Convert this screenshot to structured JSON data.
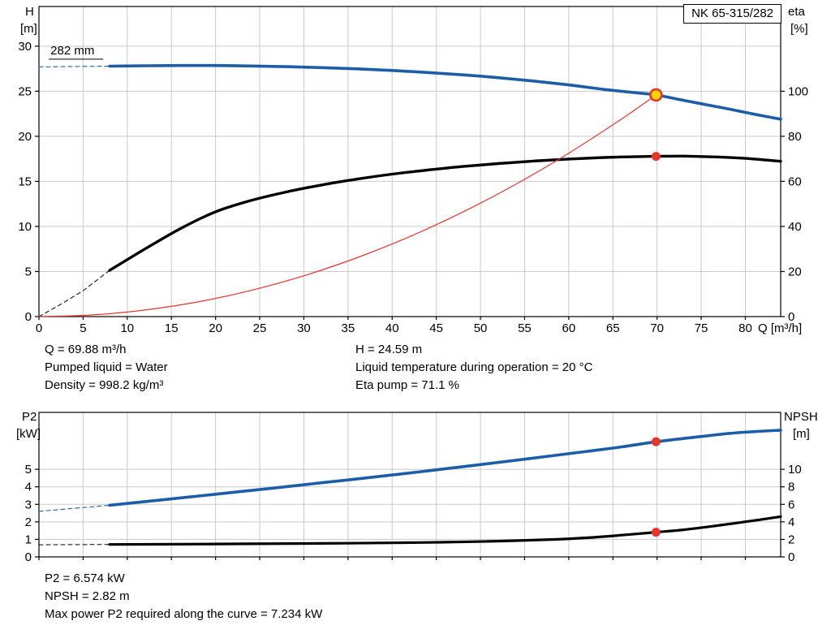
{
  "model_box": "NK 65-315/282",
  "info_top": {
    "q": "Q = 69.88 m³/h",
    "pumped_liquid": "Pumped liquid = Water",
    "density": "Density = 998.2 kg/m³",
    "h": "H = 24.59 m",
    "temperature": "Liquid temperature during operation = 20 °C",
    "eta": "Eta pump = 71.1 %"
  },
  "info_bottom": {
    "p2": "P2 = 6.574 kW",
    "npsh": "NPSH = 2.82 m",
    "max_power": "Max power P2 required along the curve = 7.234 kW"
  },
  "colors": {
    "curve_blue": "#1c5da8",
    "curve_black": "#000000",
    "system_red": "#e6352b",
    "duty_yellow": "#ffd400",
    "grid_gray": "#c9c9c9"
  },
  "chart_data": [
    {
      "type": "line",
      "name": "QH and efficiency curves",
      "x": {
        "label": "Q [m³/h]",
        "min": 0,
        "max": 84,
        "ticks": [
          0,
          5,
          10,
          15,
          20,
          25,
          30,
          35,
          40,
          45,
          50,
          55,
          60,
          65,
          70,
          75,
          80
        ]
      },
      "y_left": {
        "title": "H",
        "unit": "[m]",
        "min": 0,
        "max": 34.4,
        "ticks": [
          0,
          5,
          10,
          15,
          20,
          25,
          30
        ]
      },
      "y_right": {
        "title": "eta",
        "unit": "[%]",
        "min": 0,
        "max": 137.6,
        "ticks": [
          0,
          20,
          40,
          60,
          80,
          100
        ]
      },
      "series": [
        {
          "name": "head-curve-282mm",
          "axis": "left",
          "color": "#1c5da8",
          "width": 3.6,
          "smooth": true,
          "points": [
            [
              8,
              27.78
            ],
            [
              12,
              27.83
            ],
            [
              16,
              27.85
            ],
            [
              20,
              27.85
            ],
            [
              24,
              27.8
            ],
            [
              28,
              27.73
            ],
            [
              32,
              27.62
            ],
            [
              36,
              27.48
            ],
            [
              40,
              27.3
            ],
            [
              44,
              27.08
            ],
            [
              48,
              26.82
            ],
            [
              52,
              26.5
            ],
            [
              56,
              26.13
            ],
            [
              60,
              25.7
            ],
            [
              64,
              25.2
            ],
            [
              68,
              24.79
            ],
            [
              69.88,
              24.59
            ],
            [
              74,
              23.8
            ],
            [
              78,
              23.05
            ],
            [
              81,
              22.45
            ],
            [
              84,
              21.9
            ]
          ]
        },
        {
          "name": "head-curve-extension",
          "axis": "left",
          "color": "#1c5da8",
          "width": 1.1,
          "dash": "5 4",
          "points": [
            [
              0,
              27.7
            ],
            [
              8,
              27.78
            ]
          ]
        },
        {
          "name": "efficiency-curve",
          "axis": "right",
          "color": "#000000",
          "width": 3.4,
          "smooth": true,
          "points": [
            [
              8,
              20.5
            ],
            [
              12,
              30
            ],
            [
              16,
              39
            ],
            [
              20,
              46.5
            ],
            [
              24,
              51.5
            ],
            [
              28,
              55.3
            ],
            [
              32,
              58.4
            ],
            [
              36,
              61
            ],
            [
              40,
              63.2
            ],
            [
              44,
              65
            ],
            [
              48,
              66.6
            ],
            [
              52,
              67.9
            ],
            [
              56,
              69
            ],
            [
              60,
              69.9
            ],
            [
              64,
              70.6
            ],
            [
              68,
              71.0
            ],
            [
              69.88,
              71.1
            ],
            [
              73,
              71.2
            ],
            [
              77,
              70.8
            ],
            [
              80,
              70.2
            ],
            [
              84,
              68.9
            ]
          ]
        },
        {
          "name": "efficiency-curve-extension",
          "axis": "right",
          "color": "#000000",
          "width": 1,
          "dash": "5 4",
          "points": [
            [
              0,
              0
            ],
            [
              2.5,
              5.5
            ],
            [
              5,
              11.5
            ],
            [
              8,
              20.5
            ]
          ]
        },
        {
          "name": "system-curve",
          "axis": "left",
          "color": "#e6352b",
          "width": 1.2,
          "smooth": true,
          "points": [
            [
              0,
              0
            ],
            [
              6,
              0.18
            ],
            [
              12,
              0.73
            ],
            [
              18,
              1.63
            ],
            [
              24,
              2.9
            ],
            [
              30,
              4.53
            ],
            [
              36,
              6.53
            ],
            [
              42,
              8.88
            ],
            [
              48,
              11.6
            ],
            [
              54,
              14.68
            ],
            [
              60,
              18.13
            ],
            [
              66,
              21.93
            ],
            [
              69.88,
              24.59
            ]
          ]
        }
      ],
      "markers": [
        {
          "name": "duty-point",
          "x": 69.88,
          "y": 24.59,
          "axis": "left",
          "r": 7,
          "fill": "#ffd400",
          "stroke": "#e6352b",
          "stroke_width": 2.6
        },
        {
          "name": "efficiency-duty-point",
          "x": 69.88,
          "y": 71.1,
          "axis": "right",
          "r": 5.5,
          "fill": "#e6352b"
        }
      ],
      "annotation": {
        "label": "282 mm",
        "x": 1.3,
        "y": 29.1
      }
    },
    {
      "type": "line",
      "name": "Power and NPSH curves",
      "x": {
        "label": "",
        "min": 0,
        "max": 84,
        "ticks": [
          0,
          5,
          10,
          15,
          20,
          25,
          30,
          35,
          40,
          45,
          50,
          55,
          60,
          65,
          70,
          75,
          80
        ]
      },
      "y_left": {
        "title": "P2",
        "unit": "[kW]",
        "min": 0,
        "max": 8.25,
        "ticks": [
          0,
          1,
          2,
          3,
          4,
          5
        ]
      },
      "y_right": {
        "title": "NPSH",
        "unit": "[m]",
        "min": 0,
        "max": 16.5,
        "ticks": [
          0,
          2,
          4,
          6,
          8,
          10
        ]
      },
      "series": [
        {
          "name": "p2-curve",
          "axis": "left",
          "color": "#1c5da8",
          "width": 3.6,
          "smooth": true,
          "points": [
            [
              8,
              2.95
            ],
            [
              14,
              3.26
            ],
            [
              20,
              3.58
            ],
            [
              26,
              3.9
            ],
            [
              32,
              4.23
            ],
            [
              38,
              4.56
            ],
            [
              44,
              4.91
            ],
            [
              50,
              5.27
            ],
            [
              56,
              5.64
            ],
            [
              62,
              6.02
            ],
            [
              66,
              6.28
            ],
            [
              69.88,
              6.574
            ],
            [
              74,
              6.82
            ],
            [
              78,
              7.04
            ],
            [
              81,
              7.15
            ],
            [
              84,
              7.234
            ]
          ]
        },
        {
          "name": "p2-curve-extension",
          "axis": "left",
          "color": "#1c5da8",
          "width": 1.1,
          "dash": "5 4",
          "points": [
            [
              0,
              2.6
            ],
            [
              8,
              2.95
            ]
          ]
        },
        {
          "name": "npsh-curve",
          "axis": "right",
          "color": "#000000",
          "width": 3.2,
          "smooth": true,
          "points": [
            [
              8,
              1.42
            ],
            [
              16,
              1.45
            ],
            [
              24,
              1.49
            ],
            [
              32,
              1.54
            ],
            [
              40,
              1.6
            ],
            [
              46,
              1.68
            ],
            [
              52,
              1.8
            ],
            [
              58,
              1.98
            ],
            [
              62,
              2.18
            ],
            [
              66,
              2.48
            ],
            [
              69.88,
              2.82
            ],
            [
              73,
              3.1
            ],
            [
              77,
              3.6
            ],
            [
              81,
              4.15
            ],
            [
              84,
              4.6
            ]
          ]
        },
        {
          "name": "npsh-curve-extension",
          "axis": "right",
          "color": "#000000",
          "width": 1,
          "dash": "5 4",
          "points": [
            [
              0,
              1.38
            ],
            [
              8,
              1.42
            ]
          ]
        }
      ],
      "markers": [
        {
          "name": "p2-duty-point",
          "x": 69.88,
          "y": 6.574,
          "axis": "left",
          "r": 5.5,
          "fill": "#e6352b"
        },
        {
          "name": "npsh-duty-point",
          "x": 69.88,
          "y": 2.82,
          "axis": "right",
          "r": 5.5,
          "fill": "#e6352b"
        }
      ]
    }
  ]
}
